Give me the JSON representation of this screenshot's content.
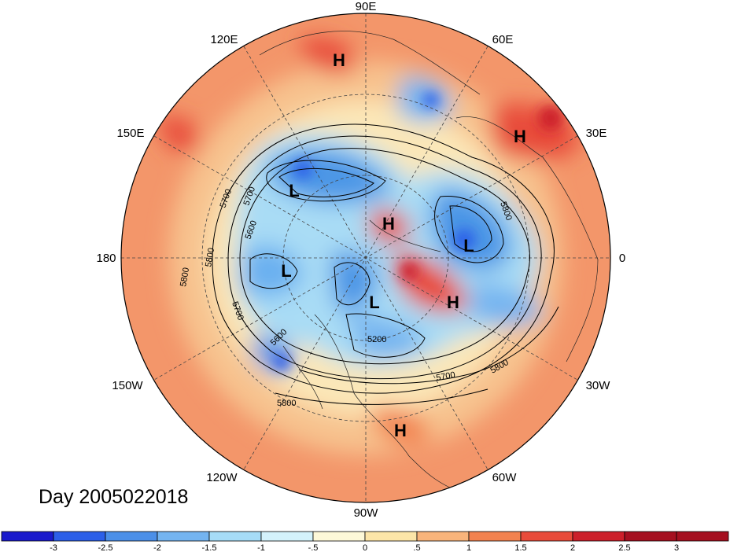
{
  "map": {
    "title": "Day 2005022018",
    "longitude_labels": [
      "90E",
      "60E",
      "30E",
      "0",
      "30W",
      "60W",
      "90W",
      "120W",
      "150W",
      "180",
      "150E",
      "120E"
    ],
    "pressure_centers": [
      {
        "type": "H",
        "label": "H"
      },
      {
        "type": "H",
        "label": "H"
      },
      {
        "type": "L",
        "label": "L"
      },
      {
        "type": "H",
        "label": "H"
      },
      {
        "type": "L",
        "label": "L"
      },
      {
        "type": "L",
        "label": "L"
      },
      {
        "type": "L",
        "label": "L"
      },
      {
        "type": "H",
        "label": "H"
      },
      {
        "type": "H",
        "label": "H"
      }
    ],
    "contour_labels": [
      "5700",
      "5600",
      "5800",
      "5700",
      "5600",
      "5800",
      "5700",
      "5800",
      "5200",
      "5700",
      "5800",
      "5800"
    ]
  },
  "colorbar": {
    "tick_labels": [
      "-3",
      "-2.5",
      "-2",
      "-1.5",
      "-1",
      "-.5",
      "0",
      ".5",
      "1",
      "1.5",
      "2",
      "2.5",
      "3"
    ],
    "colors": [
      "#1a1acc",
      "#2c5fe8",
      "#4b8fe8",
      "#74b4f0",
      "#a6dcf7",
      "#d4f2fb",
      "#fdf8d8",
      "#fce5a8",
      "#f8b47b",
      "#f2824f",
      "#e84b3a",
      "#cc1f2a",
      "#a50f1f"
    ]
  }
}
